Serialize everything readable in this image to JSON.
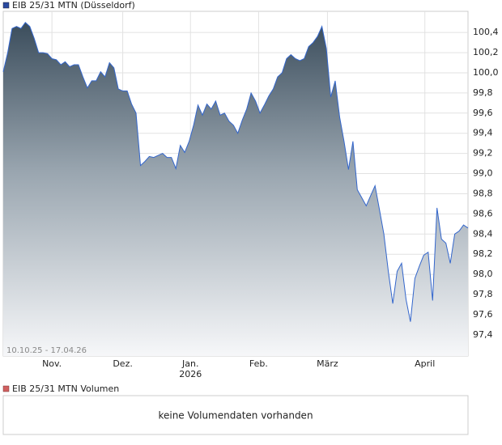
{
  "chart_data": {
    "type": "area",
    "title": "EIB 25/31 MTN (Düsseldorf)",
    "range_label": "10.10.25 - 17.04.26",
    "series": [
      {
        "name": "EIB 25/31 MTN (Düsseldorf)",
        "color": "#3366cc",
        "values": [
          100.01,
          100.2,
          100.44,
          100.46,
          100.44,
          100.5,
          100.46,
          100.34,
          100.2,
          100.2,
          100.19,
          100.14,
          100.13,
          100.08,
          100.11,
          100.06,
          100.08,
          100.08,
          99.96,
          99.85,
          99.92,
          99.92,
          100.01,
          99.96,
          100.1,
          100.05,
          99.84,
          99.82,
          99.82,
          99.69,
          99.6,
          99.08,
          99.12,
          99.17,
          99.16,
          99.18,
          99.2,
          99.16,
          99.16,
          99.05,
          99.28,
          99.21,
          99.32,
          99.48,
          99.68,
          99.58,
          99.69,
          99.64,
          99.72,
          99.58,
          99.6,
          99.52,
          99.48,
          99.4,
          99.53,
          99.64,
          99.8,
          99.72,
          99.6,
          99.68,
          99.77,
          99.84,
          99.96,
          100.0,
          100.14,
          100.18,
          100.14,
          100.12,
          100.14,
          100.26,
          100.3,
          100.36,
          100.46,
          100.24,
          99.76,
          99.92,
          99.56,
          99.32,
          99.04,
          99.32,
          98.84,
          98.76,
          98.68,
          98.78,
          98.88,
          98.64,
          98.4,
          98.03,
          97.71,
          98.03,
          98.11,
          97.75,
          97.53,
          97.96,
          98.08,
          98.19,
          98.22,
          97.74,
          98.66,
          98.35,
          98.31,
          98.11,
          98.4,
          98.43,
          98.49,
          98.46
        ]
      }
    ],
    "xlim": [
      0,
      105
    ],
    "xticks": [
      {
        "value": 11,
        "label": "Nov."
      },
      {
        "value": 27,
        "label": "Dez."
      },
      {
        "value": 42.3,
        "label": "Jan."
      },
      {
        "value": 57.7,
        "label": "Feb."
      },
      {
        "value": 73.25,
        "label": "März"
      },
      {
        "value": 95.25,
        "label": "April"
      }
    ],
    "year_label": "2026",
    "ylim": [
      97.19,
      100.61
    ],
    "yticks": [
      {
        "value": 97.4,
        "label": "97,4"
      },
      {
        "value": 97.6,
        "label": "97,6"
      },
      {
        "value": 97.8,
        "label": "97,8"
      },
      {
        "value": 98.0,
        "label": "98,0"
      },
      {
        "value": 98.2,
        "label": "98,2"
      },
      {
        "value": 98.4,
        "label": "98,4"
      },
      {
        "value": 98.6,
        "label": "98,6"
      },
      {
        "value": 98.8,
        "label": "98,8"
      },
      {
        "value": 99.0,
        "label": "99,0"
      },
      {
        "value": 99.2,
        "label": "99,2"
      },
      {
        "value": 99.4,
        "label": "99,4"
      },
      {
        "value": 99.6,
        "label": "99,6"
      },
      {
        "value": 99.8,
        "label": "99,8"
      },
      {
        "value": 100.0,
        "label": "100,0"
      },
      {
        "value": 100.2,
        "label": "100,2"
      },
      {
        "value": 100.4,
        "label": "100,4"
      }
    ],
    "grid": true,
    "volume_title": "EIB 25/31 MTN Volumen",
    "volume_message": "keine Volumendaten vorhanden"
  }
}
